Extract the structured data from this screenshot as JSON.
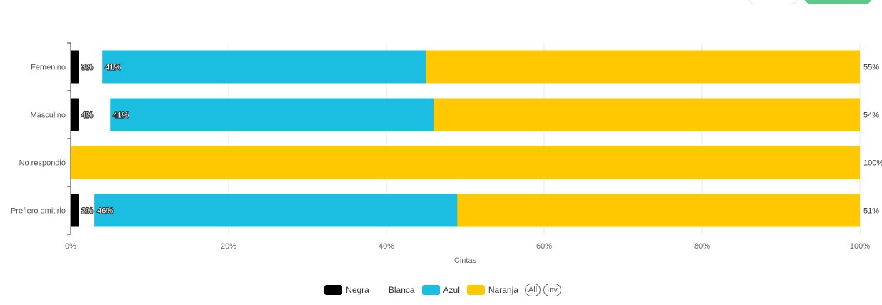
{
  "chart_data": {
    "type": "bar",
    "orientation": "horizontal",
    "stacked": "percent",
    "categories": [
      "Femenino",
      "Masculino",
      "No respondió",
      "Prefiero omitirlo"
    ],
    "series": [
      {
        "name": "Negra",
        "color": "#000000",
        "values": [
          1,
          1,
          0,
          1
        ],
        "labels": [
          "1%",
          "1%",
          "",
          "1%"
        ]
      },
      {
        "name": "Blanca",
        "color": "#ffffff",
        "values": [
          3,
          4,
          0,
          2
        ],
        "labels": [
          "3%",
          "4%",
          "0%",
          "2%"
        ]
      },
      {
        "name": "Azul",
        "color": "#1bbde0",
        "values": [
          41,
          41,
          0,
          46
        ],
        "labels": [
          "41%",
          "41%",
          "",
          "46%"
        ]
      },
      {
        "name": "Naranja",
        "color": "#ffc800",
        "values": [
          55,
          54,
          100,
          51
        ],
        "labels": [
          "55%",
          "54%",
          "100%",
          "51%"
        ]
      }
    ],
    "xlabel": "Cintas",
    "xlim": [
      0,
      100
    ],
    "xticks": [
      "0%",
      "20%",
      "40%",
      "60%",
      "80%",
      "100%"
    ],
    "legend_position": "bottom",
    "grid": true
  },
  "legend": {
    "items": [
      "Negra",
      "Blanca",
      "Azul",
      "Naranja"
    ],
    "all_label": "All",
    "inv_label": "Inv"
  }
}
